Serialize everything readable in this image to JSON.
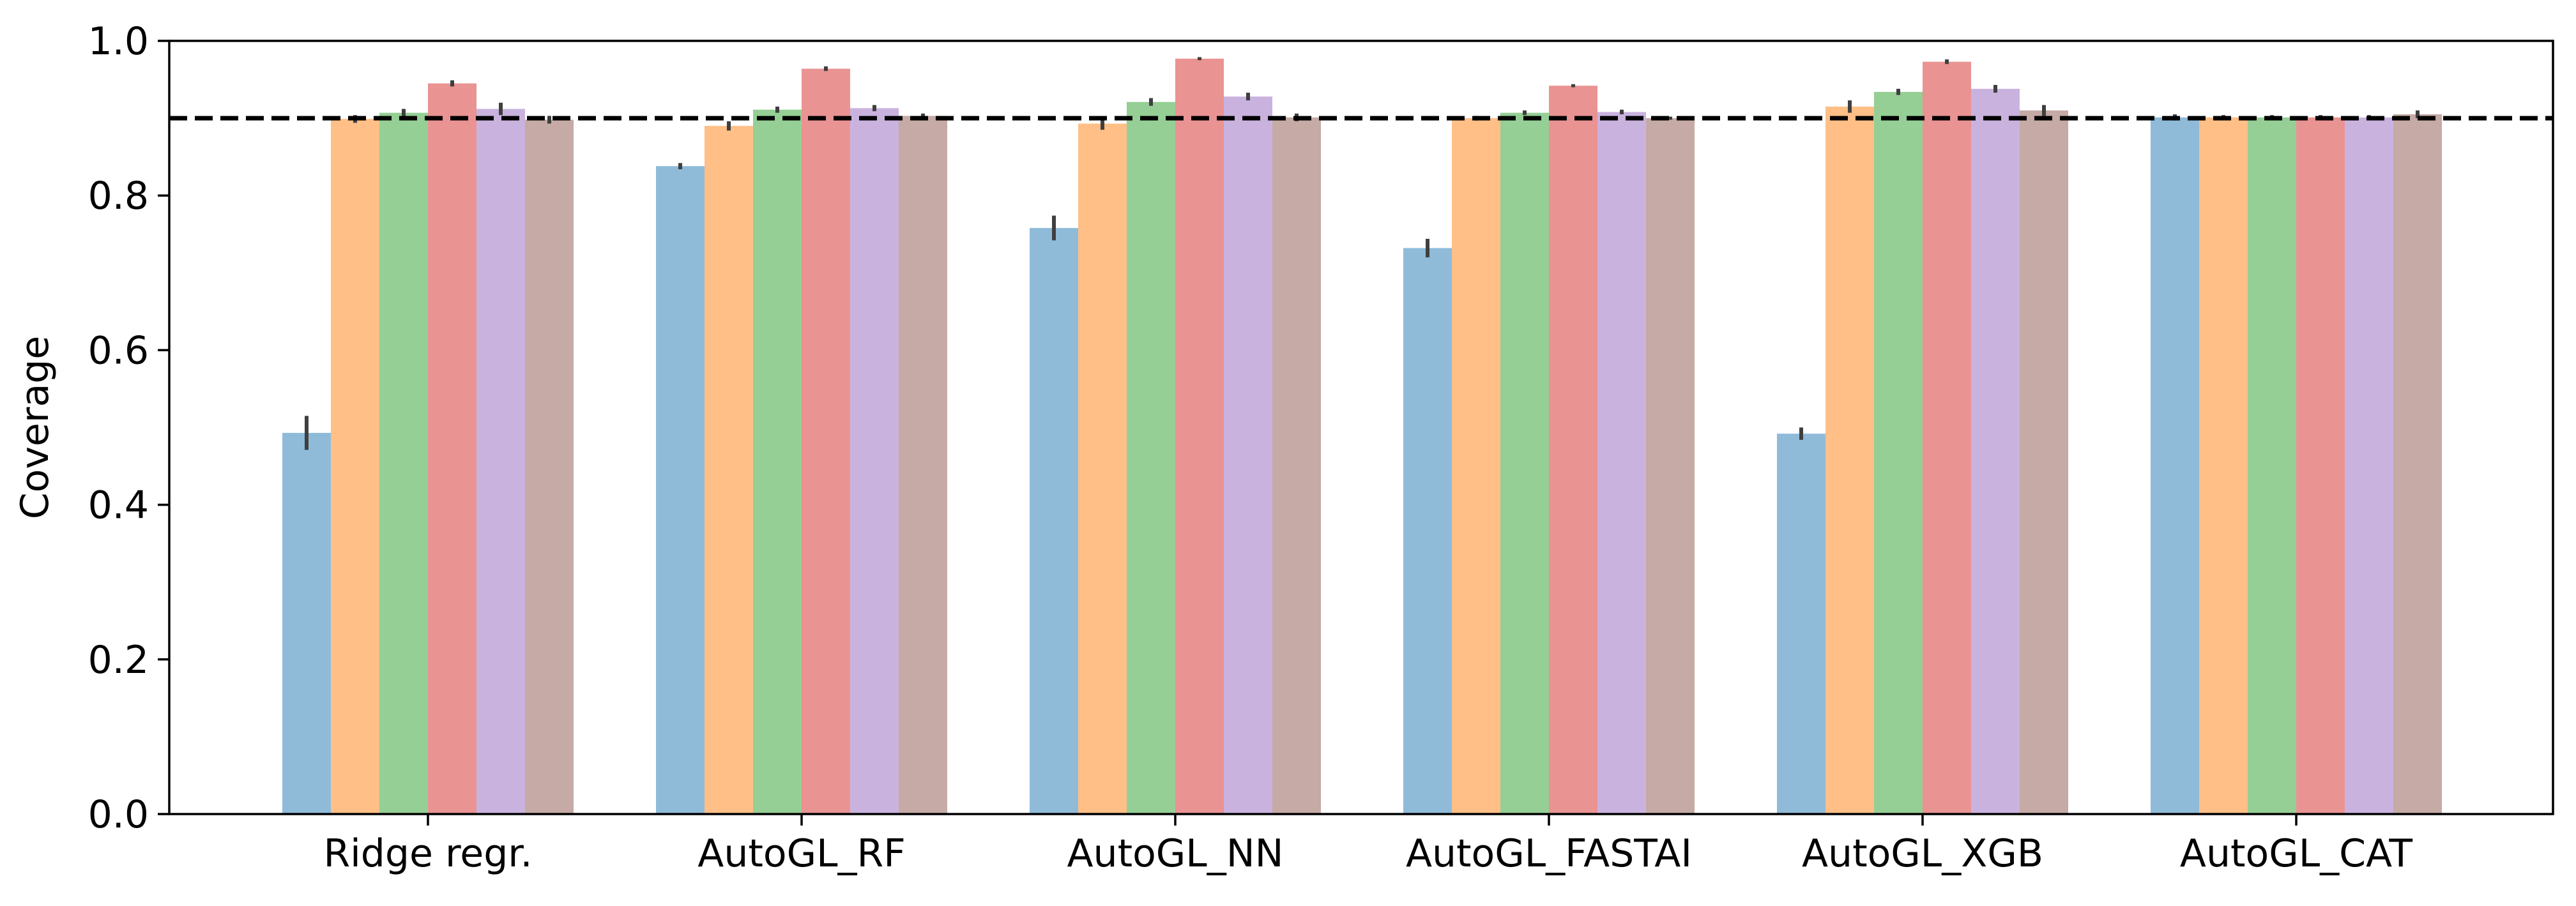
{
  "chart_data": {
    "type": "bar",
    "title": "",
    "xlabel": "",
    "ylabel": "Coverage",
    "ylim": [
      0.0,
      1.0
    ],
    "yticks": [
      "0.0",
      "0.2",
      "0.4",
      "0.6",
      "0.8",
      "1.0"
    ],
    "categories": [
      "Ridge regr.",
      "AutoGL_RF",
      "AutoGL_NN",
      "AutoGL_FASTAI",
      "AutoGL_XGB",
      "AutoGL_CAT"
    ],
    "reference_line": {
      "value": 0.9,
      "style": "dashed",
      "color": "#000000"
    },
    "grid": false,
    "legend": "none",
    "bar_alpha": 0.5,
    "error_bar_color": "#3f3f3f",
    "series": [
      {
        "color": "#1f77b4",
        "values": [
          0.493,
          0.838,
          0.758,
          0.732,
          0.492,
          0.901
        ],
        "errors": [
          0.022,
          0.004,
          0.016,
          0.012,
          0.008,
          0.004
        ]
      },
      {
        "color": "#ff7f0e",
        "values": [
          0.899,
          0.89,
          0.893,
          0.9,
          0.915,
          0.901
        ],
        "errors": [
          0.005,
          0.006,
          0.008,
          0.003,
          0.008,
          0.003
        ]
      },
      {
        "color": "#2ca02c",
        "values": [
          0.907,
          0.911,
          0.921,
          0.907,
          0.934,
          0.901
        ],
        "errors": [
          0.005,
          0.004,
          0.005,
          0.003,
          0.004,
          0.003
        ]
      },
      {
        "color": "#d62728",
        "values": [
          0.945,
          0.964,
          0.977,
          0.942,
          0.973,
          0.901
        ],
        "errors": [
          0.004,
          0.003,
          0.002,
          0.002,
          0.003,
          0.003
        ]
      },
      {
        "color": "#9467bd",
        "values": [
          0.912,
          0.913,
          0.928,
          0.908,
          0.938,
          0.901
        ],
        "errors": [
          0.008,
          0.004,
          0.005,
          0.003,
          0.005,
          0.003
        ]
      },
      {
        "color": "#8c564b",
        "values": [
          0.898,
          0.903,
          0.901,
          0.9,
          0.91,
          0.905
        ],
        "errors": [
          0.005,
          0.003,
          0.005,
          0.002,
          0.007,
          0.005
        ]
      }
    ]
  }
}
